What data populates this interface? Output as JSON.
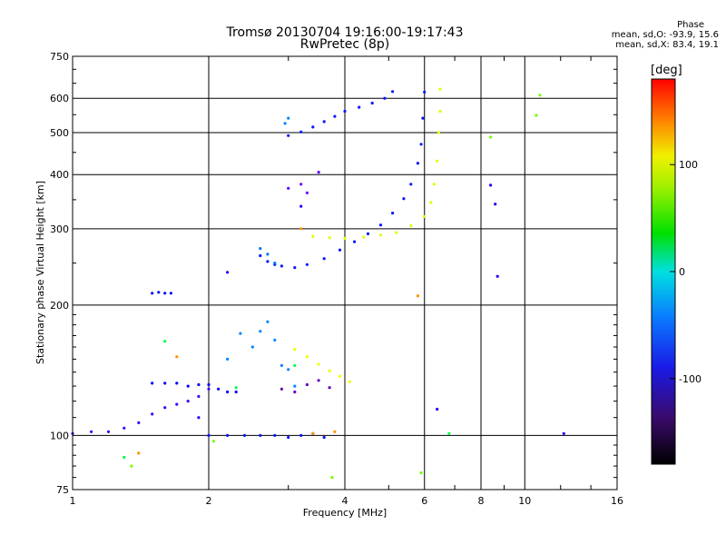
{
  "header": {
    "title_line1": "Tromsø 20130704 19:16:00-19:17:43",
    "title_line2": "RwPretec (8p)",
    "phase_title": "Phase",
    "phase_o_stats": "mean, sd,O: -93.9, 15.6",
    "phase_x_stats": "mean, sd,X: 83.4, 19.1"
  },
  "colorbar": {
    "unit_label": "[deg]",
    "ticks": [
      "100",
      "0",
      "-100"
    ],
    "tick_values": [
      100,
      0,
      -100
    ],
    "range": [
      -180,
      180
    ]
  },
  "chart_data": {
    "type": "scatter",
    "title": "Tromsø 20130704 19:16:00-19:17:43",
    "subtitle": "RwPretec (8p)",
    "xlabel": "Frequency [MHz]",
    "ylabel": "Stationary phase Virtual Height [km]",
    "x_scale": "log",
    "y_scale": "log",
    "xlim": [
      1,
      16
    ],
    "ylim": [
      75,
      750
    ],
    "x_ticks": [
      1,
      2,
      4,
      6,
      8,
      10,
      16
    ],
    "x_tick_labels": [
      "1",
      "2",
      "4",
      "6",
      "8",
      "10",
      "16"
    ],
    "y_ticks": [
      75,
      100,
      200,
      300,
      400,
      500,
      600,
      750
    ],
    "y_tick_labels": [
      "75",
      "100",
      "200",
      "300",
      "400",
      "500",
      "600",
      "750"
    ],
    "grid": true,
    "color_encoding": "phase [deg]",
    "traces": [
      {
        "name": "",
        "phase": -120,
        "x": [
          1.0,
          1.1,
          1.2,
          1.3,
          1.4,
          1.5,
          1.6,
          1.7,
          1.8,
          1.9,
          2.0
        ],
        "y": [
          101,
          102,
          102,
          104,
          107,
          112,
          116,
          118,
          120,
          123,
          128
        ]
      },
      {
        "name": "",
        "phase": -105,
        "x": [
          1.5,
          1.6,
          1.7,
          1.8,
          1.9,
          2.0,
          2.1,
          2.2,
          2.3
        ],
        "y": [
          132,
          132,
          132,
          130,
          131,
          131,
          128,
          126,
          126
        ]
      },
      {
        "name": "",
        "phase": -95,
        "x": [
          2.0,
          2.2,
          2.4,
          2.6,
          2.8,
          3.0,
          3.2,
          3.4,
          3.6
        ],
        "y": [
          100,
          100,
          100,
          100,
          100,
          99,
          100,
          101,
          99
        ]
      },
      {
        "name": "",
        "phase": -100,
        "x": [
          1.5,
          1.55,
          1.6,
          1.65
        ],
        "y": [
          213,
          214,
          213,
          213
        ]
      },
      {
        "name": "",
        "phase": -65,
        "x": [
          2.2,
          2.35,
          2.5,
          2.6,
          2.7,
          2.8,
          2.9,
          3.0,
          3.1
        ],
        "y": [
          150,
          172,
          160,
          174,
          183,
          166,
          145,
          142,
          130
        ]
      },
      {
        "name": "",
        "phase": -140,
        "x": [
          2.9,
          3.1,
          3.3,
          3.5,
          3.7
        ],
        "y": [
          128,
          126,
          131,
          134,
          129
        ]
      },
      {
        "name": "",
        "phase": 105,
        "x": [
          3.1,
          3.3,
          3.5,
          3.7,
          3.9,
          4.1
        ],
        "y": [
          158,
          152,
          146,
          141,
          137,
          133
        ]
      },
      {
        "name": "",
        "phase": -95,
        "x": [
          2.6,
          2.7,
          2.8,
          2.9,
          3.1,
          3.3,
          3.6,
          3.9,
          4.2,
          4.5,
          4.8,
          5.1,
          5.4,
          5.6,
          5.8,
          5.9,
          5.95,
          6.0
        ],
        "y": [
          260,
          252,
          248,
          246,
          244,
          248,
          256,
          268,
          280,
          292,
          306,
          326,
          352,
          380,
          425,
          470,
          540,
          620
        ]
      },
      {
        "name": "",
        "phase": -70,
        "x": [
          2.6,
          2.7,
          2.8
        ],
        "y": [
          270,
          262,
          250
        ]
      },
      {
        "name": "",
        "phase": 100,
        "x": [
          3.4,
          3.7,
          4.0,
          4.4,
          4.8,
          5.2,
          5.6,
          6.0,
          6.2,
          6.3,
          6.4,
          6.45,
          6.5,
          6.5
        ],
        "y": [
          288,
          286,
          285,
          287,
          290,
          294,
          305,
          320,
          345,
          380,
          430,
          500,
          560,
          630
        ]
      },
      {
        "name": "",
        "phase": -95,
        "x": [
          3.0,
          3.2,
          3.4,
          3.6,
          3.8,
          4.0,
          4.3,
          4.6,
          4.9,
          5.1
        ],
        "y": [
          492,
          502,
          515,
          530,
          545,
          560,
          572,
          585,
          600,
          622
        ]
      },
      {
        "name": "",
        "phase": -65,
        "x": [
          2.95,
          3.0
        ],
        "y": [
          525,
          540
        ]
      },
      {
        "name": "",
        "phase": -130,
        "x": [
          3.0,
          3.2,
          3.3,
          3.5
        ],
        "y": [
          372,
          380,
          363,
          405
        ]
      },
      {
        "name": "",
        "phase": 20,
        "x": [
          1.3,
          1.6,
          2.3,
          3.1,
          6.8
        ],
        "y": [
          89,
          165,
          129,
          145,
          101
        ]
      },
      {
        "name": "",
        "phase": 140,
        "x": [
          1.4,
          1.7,
          3.2,
          3.4,
          3.8,
          5.8
        ],
        "y": [
          91,
          152,
          300,
          101,
          102,
          210
        ]
      },
      {
        "name": "",
        "phase": -110,
        "x": [
          1.9,
          2.2,
          3.2,
          6.4,
          8.4,
          8.6,
          8.7,
          12.2
        ],
        "y": [
          110,
          238,
          338,
          115,
          378,
          342,
          233,
          101
        ]
      },
      {
        "name": "",
        "phase": 70,
        "x": [
          1.35,
          2.05,
          3.75,
          5.9,
          8.4,
          10.6,
          10.8
        ],
        "y": [
          85,
          97,
          80,
          82,
          488,
          548,
          610
        ]
      }
    ]
  }
}
